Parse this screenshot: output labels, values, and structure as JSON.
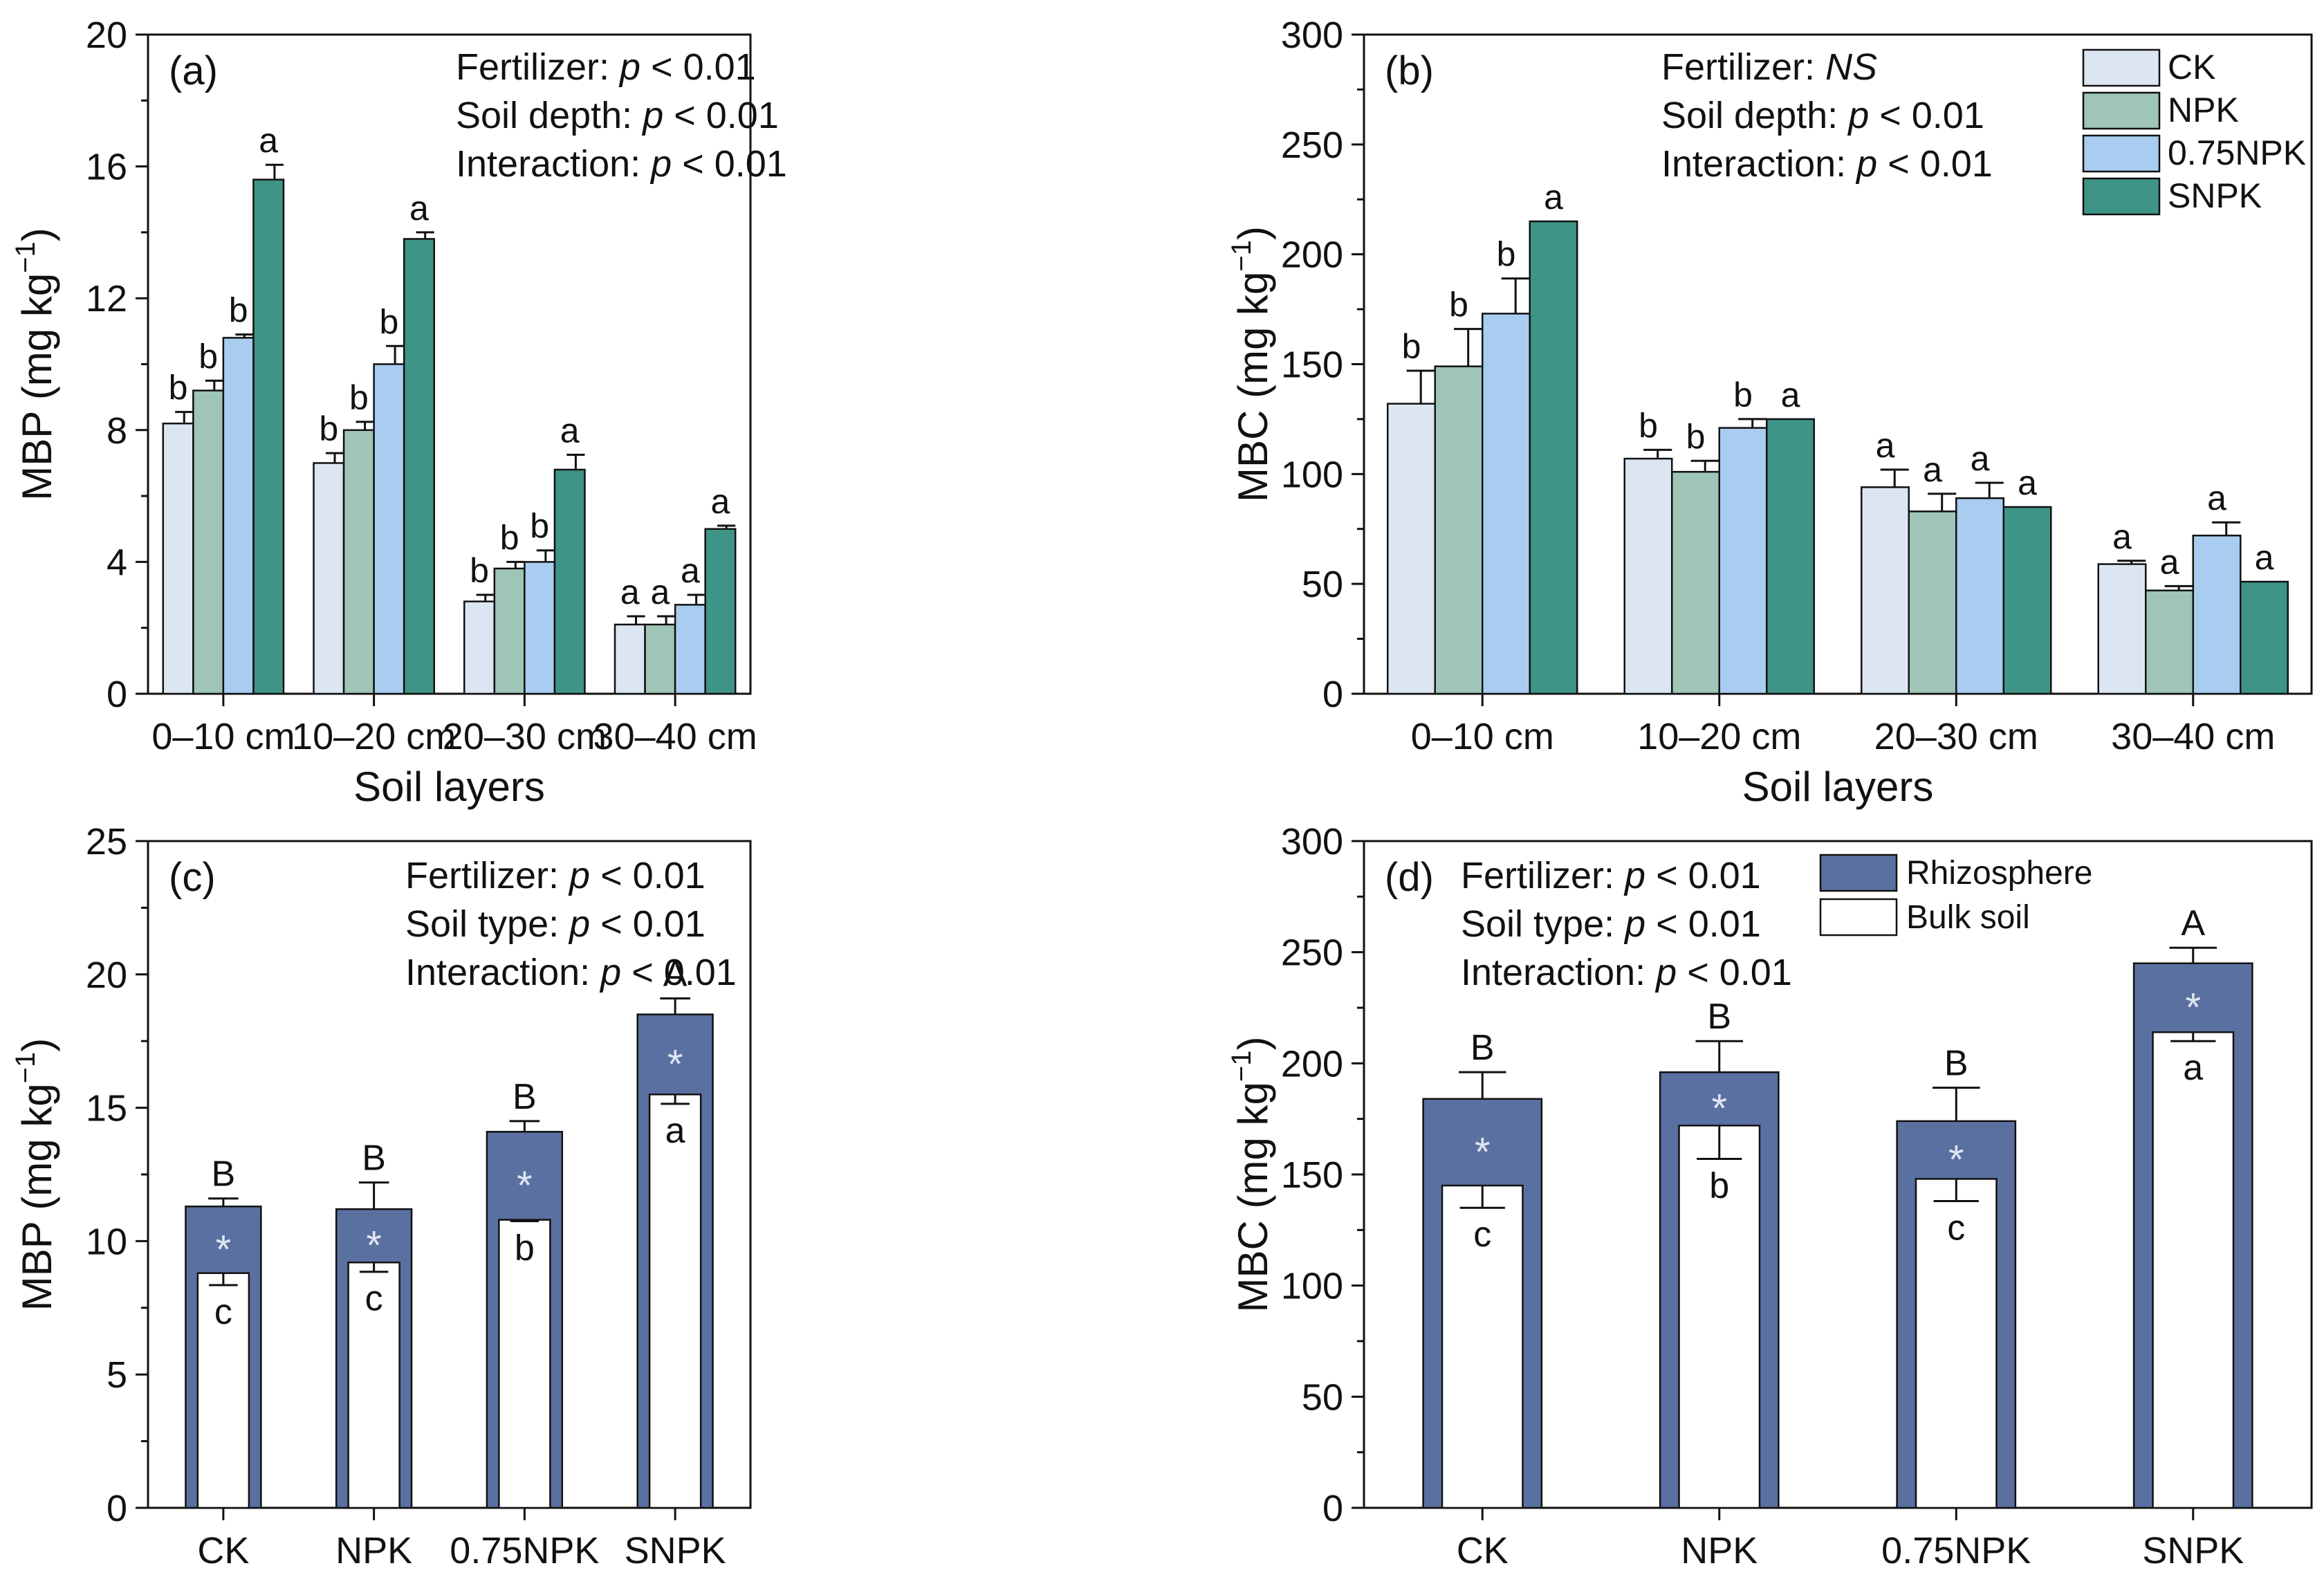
{
  "colors": {
    "CK": "#dce6f2",
    "NPK": "#9ec5b6",
    "0.75NPK": "#a9cdf1",
    "SNPK": "#3e9486",
    "rhizosphere": "#5a70a0",
    "bulk": "#ffffff",
    "axis": "#111111"
  },
  "chart_data": [
    {
      "id": "a",
      "type": "bar",
      "panel_label": "(a)",
      "ylabel": "MBP (mg kg",
      "ylabel_sup": "−1",
      "ylabel_close": ")",
      "xlabel": "Soil layers",
      "ylim": [
        0,
        20
      ],
      "yticks": [
        "0",
        "4",
        "8",
        "12",
        "16",
        "20"
      ],
      "categories": [
        "0–10 cm",
        "10–20 cm",
        "20–30 cm",
        "30–40 cm"
      ],
      "stats": [
        {
          "label": "Fertilizer: ",
          "p": "p",
          "rest": " < 0.01"
        },
        {
          "label": "Soil depth: ",
          "p": "p",
          "rest": " < 0.01"
        },
        {
          "label": "Interaction: ",
          "p": "p",
          "rest": " < 0.01"
        }
      ],
      "series": [
        {
          "name": "CK",
          "values": [
            8.2,
            7.0,
            2.8,
            2.1
          ],
          "errors": [
            0.35,
            0.3,
            0.2,
            0.25
          ],
          "letters": [
            "b",
            "b",
            "b",
            "a"
          ]
        },
        {
          "name": "NPK",
          "values": [
            9.2,
            8.0,
            3.8,
            2.1
          ],
          "errors": [
            0.3,
            0.25,
            0.2,
            0.25
          ],
          "letters": [
            "b",
            "b",
            "b",
            "a"
          ]
        },
        {
          "name": "0.75NPK",
          "values": [
            10.8,
            10.0,
            4.0,
            2.7
          ],
          "errors": [
            0.1,
            0.55,
            0.35,
            0.3
          ],
          "letters": [
            "b",
            "b",
            "b",
            "a"
          ]
        },
        {
          "name": "SNPK",
          "values": [
            15.6,
            13.8,
            6.8,
            5.0
          ],
          "errors": [
            0.45,
            0.2,
            0.45,
            0.1
          ],
          "letters": [
            "a",
            "a",
            "a",
            "a"
          ]
        }
      ]
    },
    {
      "id": "b",
      "type": "bar",
      "panel_label": "(b)",
      "ylabel": "MBC (mg kg",
      "ylabel_sup": "−1",
      "ylabel_close": ")",
      "xlabel": "Soil layers",
      "ylim": [
        0,
        300
      ],
      "yticks": [
        "0",
        "50",
        "100",
        "150",
        "200",
        "250",
        "300"
      ],
      "categories": [
        "0–10 cm",
        "10–20 cm",
        "20–30 cm",
        "30–40 cm"
      ],
      "stats": [
        {
          "label": "Fertilizer: ",
          "p": "NS",
          "rest": ""
        },
        {
          "label": "Soil depth: ",
          "p": "p",
          "rest": " < 0.01"
        },
        {
          "label": "Interaction: ",
          "p": "p",
          "rest": " < 0.01"
        }
      ],
      "legend": [
        "CK",
        "NPK",
        "0.75NPK",
        "SNPK"
      ],
      "series": [
        {
          "name": "CK",
          "values": [
            132,
            107,
            94,
            59
          ],
          "errors": [
            15,
            4,
            8,
            1.5
          ],
          "letters": [
            "b",
            "b",
            "a",
            "a"
          ]
        },
        {
          "name": "NPK",
          "values": [
            149,
            101,
            83,
            47
          ],
          "errors": [
            17,
            5,
            8,
            2
          ],
          "letters": [
            "b",
            "b",
            "a",
            "a"
          ]
        },
        {
          "name": "0.75NPK",
          "values": [
            173,
            121,
            89,
            72
          ],
          "errors": [
            16,
            4,
            7,
            6
          ],
          "letters": [
            "b",
            "b",
            "a",
            "a"
          ]
        },
        {
          "name": "SNPK",
          "values": [
            215,
            125,
            85,
            51
          ],
          "errors": [
            0,
            0,
            0,
            0
          ],
          "letters": [
            "a",
            "a",
            "a",
            "a"
          ]
        }
      ]
    },
    {
      "id": "c",
      "type": "bar",
      "panel_label": "(c)",
      "ylabel": "MBP (mg kg",
      "ylabel_sup": "−1",
      "ylabel_close": ")",
      "xlabel": "",
      "ylim": [
        0,
        25
      ],
      "yticks": [
        "0",
        "5",
        "10",
        "15",
        "20",
        "25"
      ],
      "categories": [
        "CK",
        "NPK",
        "0.75NPK",
        "SNPK"
      ],
      "stats": [
        {
          "label": "Fertilizer: ",
          "p": "p",
          "rest": " < 0.01"
        },
        {
          "label": "Soil type: ",
          "p": "p",
          "rest": " < 0.01"
        },
        {
          "label": "Interaction: ",
          "p": "p",
          "rest": " < 0.01"
        }
      ],
      "series": [
        {
          "name": "Rhizosphere",
          "values": [
            11.3,
            11.2,
            14.1,
            18.5
          ],
          "errors": [
            0.3,
            1.0,
            0.4,
            0.6
          ],
          "letters": [
            "B",
            "B",
            "B",
            "A"
          ],
          "marks": [
            "*",
            "*",
            "*",
            "*"
          ]
        },
        {
          "name": "Bulk soil",
          "values": [
            8.8,
            9.2,
            10.8,
            15.5
          ],
          "errors": [
            0.45,
            0.35,
            0.05,
            0.35
          ],
          "letters": [
            "c",
            "c",
            "b",
            "a"
          ]
        }
      ]
    },
    {
      "id": "d",
      "type": "bar",
      "panel_label": "(d)",
      "ylabel": "MBC (mg kg",
      "ylabel_sup": "−1",
      "ylabel_close": ")",
      "xlabel": "",
      "ylim": [
        0,
        300
      ],
      "yticks": [
        "0",
        "50",
        "100",
        "150",
        "200",
        "250",
        "300"
      ],
      "categories": [
        "CK",
        "NPK",
        "0.75NPK",
        "SNPK"
      ],
      "stats": [
        {
          "label": "Fertilizer: ",
          "p": "p",
          "rest": " < 0.01"
        },
        {
          "label": "Soil type: ",
          "p": "p",
          "rest": " < 0.01"
        },
        {
          "label": "Interaction: ",
          "p": "p",
          "rest": " < 0.01"
        }
      ],
      "legend": [
        "Rhizosphere",
        "Bulk soil"
      ],
      "series": [
        {
          "name": "Rhizosphere",
          "values": [
            184,
            196,
            174,
            245
          ],
          "errors": [
            12,
            14,
            15,
            7
          ],
          "letters": [
            "B",
            "B",
            "B",
            "A"
          ],
          "marks": [
            "*",
            "*",
            "*",
            "*"
          ]
        },
        {
          "name": "Bulk soil",
          "values": [
            145,
            172,
            148,
            214
          ],
          "errors": [
            10,
            15,
            10,
            4
          ],
          "letters": [
            "c",
            "b",
            "c",
            "a"
          ]
        }
      ]
    }
  ]
}
